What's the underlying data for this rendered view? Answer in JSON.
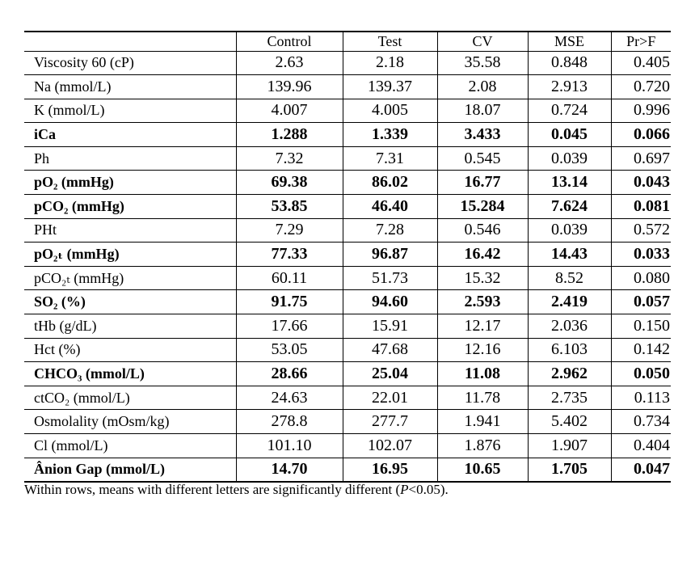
{
  "table": {
    "headers": [
      "",
      "Control",
      "Test",
      "CV",
      "MSE",
      "Pr>F"
    ],
    "rows": [
      {
        "label": "Viscosity 60 (cP)",
        "values": [
          "2.63",
          "2.18",
          "35.58",
          "0.848",
          "0.405"
        ],
        "bold": false
      },
      {
        "label": "Na (mmol/L)",
        "values": [
          "139.96",
          "139.37",
          "2.08",
          "2.913",
          "0.720"
        ],
        "bold": false
      },
      {
        "label": "K (mmol/L)",
        "values": [
          "4.007",
          "4.005",
          "18.07",
          "0.724",
          "0.996"
        ],
        "bold": false
      },
      {
        "label": "iCa",
        "values": [
          "1.288",
          "1.339",
          "3.433",
          "0.045",
          "0.066"
        ],
        "bold": true
      },
      {
        "label": "Ph",
        "values": [
          "7.32",
          "7.31",
          "0.545",
          "0.039",
          "0.697"
        ],
        "bold": false
      },
      {
        "label": "pO₂ (mmHg)",
        "values": [
          "69.38",
          "86.02",
          "16.77",
          "13.14",
          "0.043"
        ],
        "bold": true
      },
      {
        "label": "pCO₂ (mmHg)",
        "values": [
          "53.85",
          "46.40",
          "15.284",
          "7.624",
          "0.081"
        ],
        "bold": true
      },
      {
        "label": "PHt",
        "values": [
          "7.29",
          "7.28",
          "0.546",
          "0.039",
          "0.572"
        ],
        "bold": false
      },
      {
        "label": "pO₂ₜ (mmHg)",
        "values": [
          "77.33",
          "96.87",
          "16.42",
          "14.43",
          "0.033"
        ],
        "bold": true
      },
      {
        "label": "pCO₂ₜ (mmHg)",
        "values": [
          "60.11",
          "51.73",
          "15.32",
          "8.52",
          "0.080"
        ],
        "bold": false
      },
      {
        "label": "SO₂ (%)",
        "values": [
          "91.75",
          "94.60",
          "2.593",
          "2.419",
          "0.057"
        ],
        "bold": true
      },
      {
        "label": "tHb (g/dL)",
        "values": [
          "17.66",
          "15.91",
          "12.17",
          "2.036",
          "0.150"
        ],
        "bold": false
      },
      {
        "label": "Hct (%)",
        "values": [
          "53.05",
          "47.68",
          "12.16",
          "6.103",
          "0.142"
        ],
        "bold": false
      },
      {
        "label": "CHCO₃ (mmol/L)",
        "values": [
          "28.66",
          "25.04",
          "11.08",
          "2.962",
          "0.050"
        ],
        "bold": true
      },
      {
        "label": "ctCO₂ (mmol/L)",
        "values": [
          "24.63",
          "22.01",
          "11.78",
          "2.735",
          "0.113"
        ],
        "bold": false
      },
      {
        "label": "Osmolality (mOsm/kg)",
        "values": [
          "278.8",
          "277.7",
          "1.941",
          "5.402",
          "0.734"
        ],
        "bold": false
      },
      {
        "label": "Cl (mmol/L)",
        "values": [
          "101.10",
          "102.07",
          "1.876",
          "1.907",
          "0.404"
        ],
        "bold": false
      },
      {
        "label": "Ânion Gap (mmol/L)",
        "values": [
          "14.70",
          "16.95",
          "10.65",
          "1.705",
          "0.047"
        ],
        "bold": true
      }
    ]
  },
  "footnote": {
    "before": "Within rows, means with different letters are significantly different (",
    "italic": "P",
    "after": "<0.05)."
  }
}
